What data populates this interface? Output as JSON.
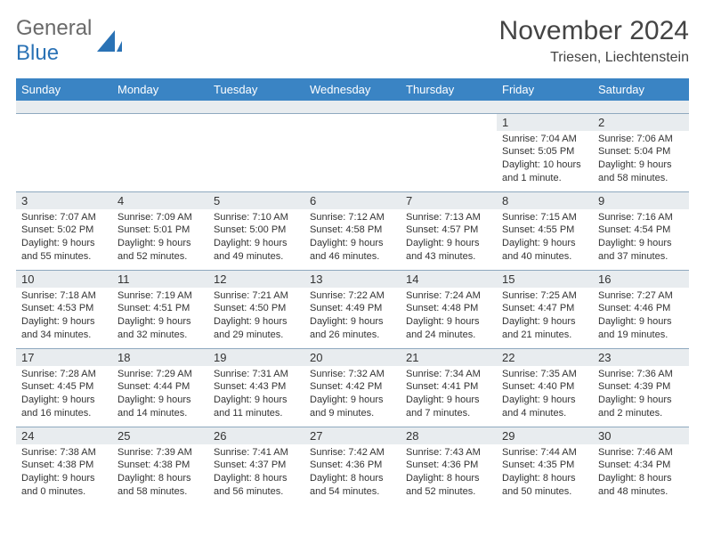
{
  "logo": {
    "text1": "General",
    "text2": "Blue",
    "text_color_gray": "#6a6a6a",
    "text_color_blue": "#2a72b5",
    "sail_color": "#2a72b5"
  },
  "title": "November 2024",
  "location": "Triesen, Liechtenstein",
  "colors": {
    "header_bg": "#3a84c4",
    "header_fg": "#ffffff",
    "daynum_bg": "#e8ecef",
    "cell_border": "#8fa9bf",
    "text": "#333333",
    "background": "#ffffff"
  },
  "fonts": {
    "title_size_pt": 22,
    "location_size_pt": 12,
    "weekday_size_pt": 10,
    "daynum_size_pt": 10,
    "body_size_pt": 8
  },
  "weekdays": [
    "Sunday",
    "Monday",
    "Tuesday",
    "Wednesday",
    "Thursday",
    "Friday",
    "Saturday"
  ],
  "weeks": [
    [
      null,
      null,
      null,
      null,
      null,
      {
        "d": "1",
        "sr": "7:04 AM",
        "ss": "5:05 PM",
        "dl": "10 hours and 1 minute."
      },
      {
        "d": "2",
        "sr": "7:06 AM",
        "ss": "5:04 PM",
        "dl": "9 hours and 58 minutes."
      }
    ],
    [
      {
        "d": "3",
        "sr": "7:07 AM",
        "ss": "5:02 PM",
        "dl": "9 hours and 55 minutes."
      },
      {
        "d": "4",
        "sr": "7:09 AM",
        "ss": "5:01 PM",
        "dl": "9 hours and 52 minutes."
      },
      {
        "d": "5",
        "sr": "7:10 AM",
        "ss": "5:00 PM",
        "dl": "9 hours and 49 minutes."
      },
      {
        "d": "6",
        "sr": "7:12 AM",
        "ss": "4:58 PM",
        "dl": "9 hours and 46 minutes."
      },
      {
        "d": "7",
        "sr": "7:13 AM",
        "ss": "4:57 PM",
        "dl": "9 hours and 43 minutes."
      },
      {
        "d": "8",
        "sr": "7:15 AM",
        "ss": "4:55 PM",
        "dl": "9 hours and 40 minutes."
      },
      {
        "d": "9",
        "sr": "7:16 AM",
        "ss": "4:54 PM",
        "dl": "9 hours and 37 minutes."
      }
    ],
    [
      {
        "d": "10",
        "sr": "7:18 AM",
        "ss": "4:53 PM",
        "dl": "9 hours and 34 minutes."
      },
      {
        "d": "11",
        "sr": "7:19 AM",
        "ss": "4:51 PM",
        "dl": "9 hours and 32 minutes."
      },
      {
        "d": "12",
        "sr": "7:21 AM",
        "ss": "4:50 PM",
        "dl": "9 hours and 29 minutes."
      },
      {
        "d": "13",
        "sr": "7:22 AM",
        "ss": "4:49 PM",
        "dl": "9 hours and 26 minutes."
      },
      {
        "d": "14",
        "sr": "7:24 AM",
        "ss": "4:48 PM",
        "dl": "9 hours and 24 minutes."
      },
      {
        "d": "15",
        "sr": "7:25 AM",
        "ss": "4:47 PM",
        "dl": "9 hours and 21 minutes."
      },
      {
        "d": "16",
        "sr": "7:27 AM",
        "ss": "4:46 PM",
        "dl": "9 hours and 19 minutes."
      }
    ],
    [
      {
        "d": "17",
        "sr": "7:28 AM",
        "ss": "4:45 PM",
        "dl": "9 hours and 16 minutes."
      },
      {
        "d": "18",
        "sr": "7:29 AM",
        "ss": "4:44 PM",
        "dl": "9 hours and 14 minutes."
      },
      {
        "d": "19",
        "sr": "7:31 AM",
        "ss": "4:43 PM",
        "dl": "9 hours and 11 minutes."
      },
      {
        "d": "20",
        "sr": "7:32 AM",
        "ss": "4:42 PM",
        "dl": "9 hours and 9 minutes."
      },
      {
        "d": "21",
        "sr": "7:34 AM",
        "ss": "4:41 PM",
        "dl": "9 hours and 7 minutes."
      },
      {
        "d": "22",
        "sr": "7:35 AM",
        "ss": "4:40 PM",
        "dl": "9 hours and 4 minutes."
      },
      {
        "d": "23",
        "sr": "7:36 AM",
        "ss": "4:39 PM",
        "dl": "9 hours and 2 minutes."
      }
    ],
    [
      {
        "d": "24",
        "sr": "7:38 AM",
        "ss": "4:38 PM",
        "dl": "9 hours and 0 minutes."
      },
      {
        "d": "25",
        "sr": "7:39 AM",
        "ss": "4:38 PM",
        "dl": "8 hours and 58 minutes."
      },
      {
        "d": "26",
        "sr": "7:41 AM",
        "ss": "4:37 PM",
        "dl": "8 hours and 56 minutes."
      },
      {
        "d": "27",
        "sr": "7:42 AM",
        "ss": "4:36 PM",
        "dl": "8 hours and 54 minutes."
      },
      {
        "d": "28",
        "sr": "7:43 AM",
        "ss": "4:36 PM",
        "dl": "8 hours and 52 minutes."
      },
      {
        "d": "29",
        "sr": "7:44 AM",
        "ss": "4:35 PM",
        "dl": "8 hours and 50 minutes."
      },
      {
        "d": "30",
        "sr": "7:46 AM",
        "ss": "4:34 PM",
        "dl": "8 hours and 48 minutes."
      }
    ]
  ],
  "labels": {
    "sunrise": "Sunrise:",
    "sunset": "Sunset:",
    "daylight": "Daylight:"
  }
}
